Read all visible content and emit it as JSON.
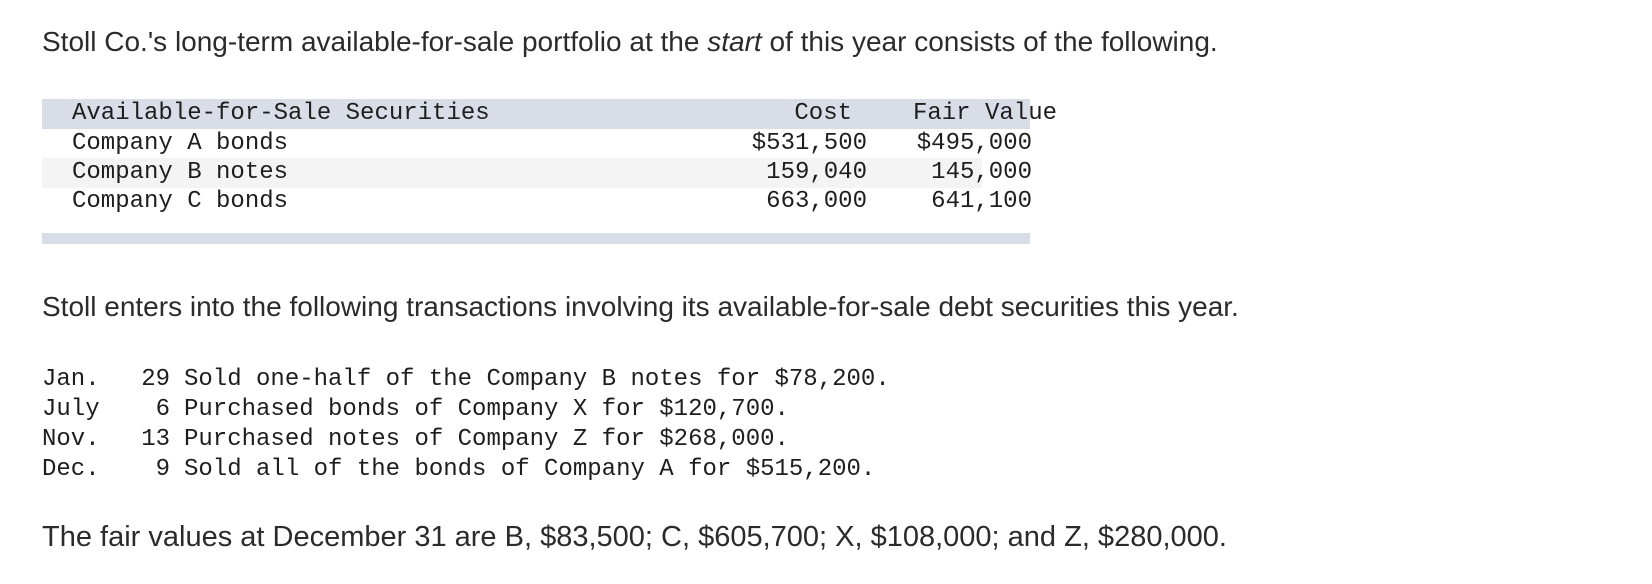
{
  "intro": {
    "before": "Stoll Co.'s long-term available-for-sale portfolio at the ",
    "emphasis": "start",
    "after": " of this year consists of the following."
  },
  "portfolio": {
    "headers": {
      "name": "Available-for-Sale Securities",
      "cost": "Cost",
      "fair_value": "Fair Value"
    },
    "rows": [
      {
        "name": "Company A bonds",
        "cost": "$531,500",
        "fair_value": "$495,000"
      },
      {
        "name": "Company B notes",
        "cost": "159,040",
        "fair_value": "145,000"
      },
      {
        "name": "Company C bonds",
        "cost": "663,000",
        "fair_value": "641,100"
      }
    ]
  },
  "transactions_intro": "Stoll enters into the following transactions involving its available-for-sale debt securities this year.",
  "transactions": [
    {
      "month": "Jan.",
      "day": "29",
      "text": "Sold one-half of the Company B notes for $78,200."
    },
    {
      "month": "July",
      "day": "6",
      "text": "Purchased bonds of Company X for $120,700."
    },
    {
      "month": "Nov.",
      "day": "13",
      "text": "Purchased notes of Company Z for $268,000."
    },
    {
      "month": "Dec.",
      "day": "9",
      "text": "Sold all of the bonds of Company A for $515,200."
    }
  ],
  "fair_values_note": "The fair values at December 31 are B, $83,500; C, $605,700; X, $108,000; and Z, $280,000."
}
